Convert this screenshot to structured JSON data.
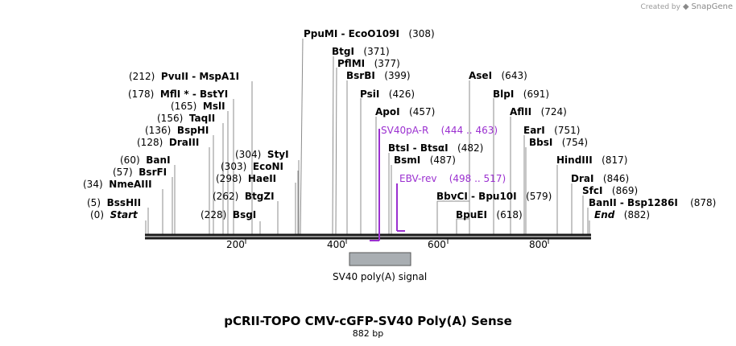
{
  "credit": {
    "prefix": "Created by",
    "brand": "SnapGene"
  },
  "title": "pCRII-TOPO CMV-cGFP-SV40 Poly(A) Sense",
  "length_label": "882 bp",
  "sequence_length": 882,
  "ticks": [
    "200",
    "400",
    "600",
    "800"
  ],
  "feature": {
    "label": "SV40 poly(A) signal",
    "start": 409,
    "end": 531,
    "color": "#a9aeb2"
  },
  "sites": [
    {
      "id": "start",
      "name": "Start",
      "pos": "(0)",
      "style": "italic",
      "side": "left"
    },
    {
      "id": "bsshii",
      "name": "BssHII",
      "pos": "(5)",
      "side": "left"
    },
    {
      "id": "nmeaiii",
      "name": "NmeAIII",
      "pos": "(34)",
      "side": "left"
    },
    {
      "id": "bsrfi",
      "name": "BsrFI",
      "pos": "(57)",
      "side": "left"
    },
    {
      "id": "bani",
      "name": "BanI",
      "pos": "(60)",
      "side": "left"
    },
    {
      "id": "draiii",
      "name": "DraIII",
      "pos": "(128)",
      "side": "left"
    },
    {
      "id": "bsphi",
      "name": "BspHI",
      "pos": "(136)",
      "side": "left"
    },
    {
      "id": "taqii",
      "name": "TaqII",
      "pos": "(156)",
      "side": "left"
    },
    {
      "id": "msli",
      "name": "MslI",
      "pos": "(165)",
      "side": "left"
    },
    {
      "id": "mfli",
      "name": "MflI * - BstYI",
      "pos": "(178)",
      "side": "left"
    },
    {
      "id": "pvuii",
      "name": "PvuII  - MspA1I",
      "pos": "(212)",
      "side": "left"
    },
    {
      "id": "bsgi",
      "name": "BsgI",
      "pos": "(228)",
      "side": "left"
    },
    {
      "id": "btgzi",
      "name": "BtgZI",
      "pos": "(262)",
      "side": "left"
    },
    {
      "id": "haeii",
      "name": "HaeII",
      "pos": "(298)",
      "side": "left"
    },
    {
      "id": "econi",
      "name": "EcoNI",
      "pos": "(303)",
      "side": "left"
    },
    {
      "id": "styi",
      "name": "StyI",
      "pos": "(304)",
      "side": "left"
    },
    {
      "id": "ppumi",
      "name": "PpuMI  - EcoO109I",
      "pos": "(308)",
      "side": "right"
    },
    {
      "id": "btgi",
      "name": "BtgI",
      "pos": "(371)",
      "side": "right"
    },
    {
      "id": "pflmi",
      "name": "PflMI",
      "pos": "(377)",
      "side": "right"
    },
    {
      "id": "bsrbi",
      "name": "BsrBI",
      "pos": "(399)",
      "side": "right"
    },
    {
      "id": "psii",
      "name": "PsiI",
      "pos": "(426)",
      "side": "right"
    },
    {
      "id": "apoi",
      "name": "ApoI",
      "pos": "(457)",
      "side": "right"
    },
    {
      "id": "btsi",
      "name": "BtsI - BtsαI",
      "pos": "(482)",
      "side": "right"
    },
    {
      "id": "bsmi",
      "name": "BsmI",
      "pos": "(487)",
      "side": "right"
    },
    {
      "id": "bbvci",
      "name": "BbvCI  - Bpu10I",
      "pos": "(579)",
      "side": "right"
    },
    {
      "id": "bpuei",
      "name": "BpuEI",
      "pos": "(618)",
      "side": "right"
    },
    {
      "id": "asei",
      "name": "AseI",
      "pos": "(643)",
      "side": "right"
    },
    {
      "id": "blpi",
      "name": "BlpI",
      "pos": "(691)",
      "side": "right"
    },
    {
      "id": "aflii",
      "name": "AflII",
      "pos": "(724)",
      "side": "right"
    },
    {
      "id": "eari",
      "name": "EarI",
      "pos": "(751)",
      "side": "right"
    },
    {
      "id": "bbsi",
      "name": "BbsI",
      "pos": "(754)",
      "side": "right"
    },
    {
      "id": "hindiii",
      "name": "HindIII",
      "pos": "(817)",
      "side": "right"
    },
    {
      "id": "drai",
      "name": "DraI",
      "pos": "(846)",
      "side": "right"
    },
    {
      "id": "sfci",
      "name": "SfcI",
      "pos": "(869)",
      "side": "right"
    },
    {
      "id": "banii",
      "name": "BanII  - Bsp1286I",
      "pos": "(878)",
      "side": "right"
    },
    {
      "id": "end",
      "name": "End",
      "pos": "(882)",
      "style": "italic",
      "side": "right"
    }
  ],
  "primers": [
    {
      "id": "sv40pa-r",
      "name": "SV40pA-R",
      "range": "(444 .. 463)",
      "direction": "reverse",
      "color": "#9b30d0"
    },
    {
      "id": "ebv-rev",
      "name": "EBV-rev",
      "range": "(498 .. 517)",
      "direction": "forward",
      "color": "#9b30d0"
    }
  ]
}
